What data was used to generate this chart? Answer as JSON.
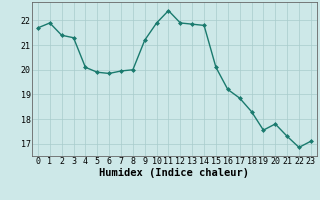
{
  "x": [
    0,
    1,
    2,
    3,
    4,
    5,
    6,
    7,
    8,
    9,
    10,
    11,
    12,
    13,
    14,
    15,
    16,
    17,
    18,
    19,
    20,
    21,
    22,
    23
  ],
  "y": [
    21.7,
    21.9,
    21.4,
    21.3,
    20.1,
    19.9,
    19.85,
    19.95,
    20.0,
    21.2,
    21.9,
    22.4,
    21.9,
    21.85,
    21.8,
    20.1,
    19.2,
    18.85,
    18.3,
    17.55,
    17.8,
    17.3,
    16.85,
    17.1
  ],
  "line_color": "#1a7a6e",
  "marker": "D",
  "marker_size": 2.0,
  "bg_color": "#cde8e8",
  "grid_color_major": "#a8cccc",
  "grid_color_minor": "#b8d8d8",
  "xlabel": "Humidex (Indice chaleur)",
  "xlabel_fontsize": 7.5,
  "ylim": [
    16.5,
    22.75
  ],
  "yticks": [
    17,
    18,
    19,
    20,
    21,
    22
  ],
  "xticks": [
    0,
    1,
    2,
    3,
    4,
    5,
    6,
    7,
    8,
    9,
    10,
    11,
    12,
    13,
    14,
    15,
    16,
    17,
    18,
    19,
    20,
    21,
    22,
    23
  ],
  "tick_fontsize": 6,
  "line_width": 1.0
}
